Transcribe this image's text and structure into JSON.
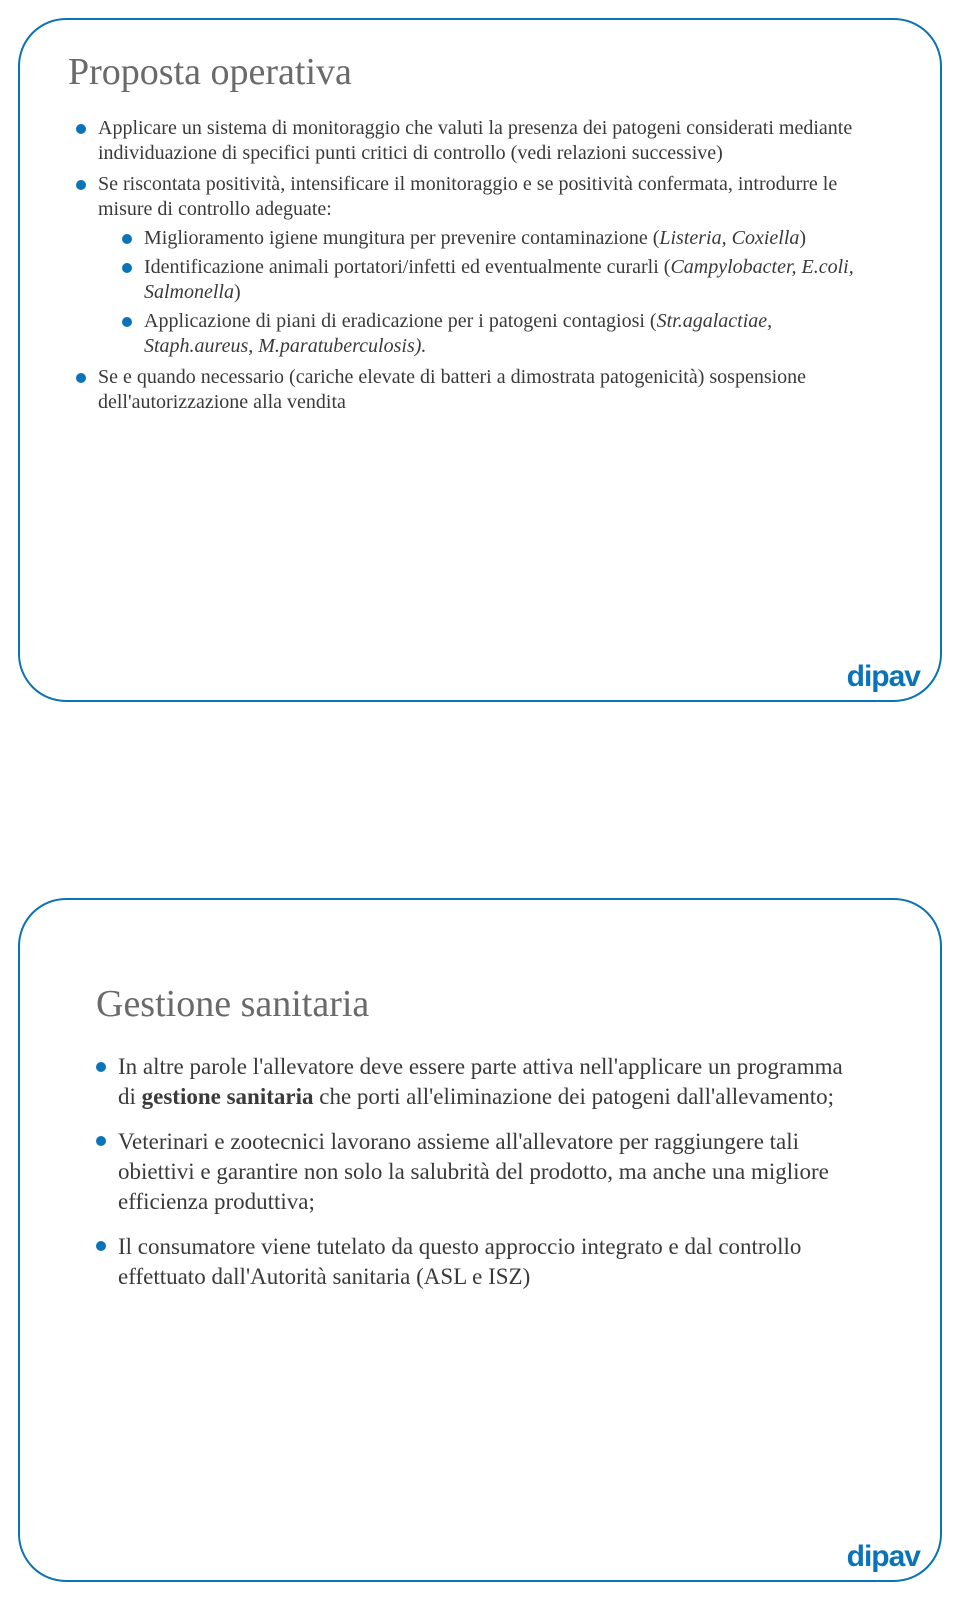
{
  "colors": {
    "accent": "#0b73b7",
    "frame": "#0b73b7",
    "title": "#6a6a6a",
    "body": "#3a3a3a",
    "logo": "#0b73b7"
  },
  "logo_text": "dipav",
  "slide1": {
    "title": "Proposta operativa",
    "b1": "Applicare un sistema di monitoraggio che valuti la presenza dei patogeni considerati mediante individuazione di specifici punti critici di controllo (vedi relazioni successive)",
    "b2": "Se riscontata positività, intensificare il monitoraggio e se positività confermata, introdurre le misure di controllo adeguate:",
    "b2a_pre": "Miglioramento igiene mungitura per prevenire contaminazione (",
    "b2a_ital": "Listeria, Coxiella",
    "b2a_post": ")",
    "b2b_pre": "Identificazione animali portatori/infetti ed eventualmente curarli (",
    "b2b_ital": "Campylobacter, E.coli, Salmonella",
    "b2b_post": ")",
    "b2c_pre": "Applicazione di piani di eradicazione per i patogeni contagiosi (",
    "b2c_ital": "Str.agalactiae, Staph.aureus, M.paratuberculosis).",
    "b3": "Se e quando necessario (cariche elevate di batteri a dimostrata patogenicità) sospensione dell'autorizzazione alla vendita"
  },
  "slide2": {
    "title": "Gestione sanitaria",
    "b1_pre": "In altre parole l'allevatore deve essere parte attiva nell'applicare un programma di ",
    "b1_bold": "gestione sanitaria",
    "b1_post": " che porti all'eliminazione dei patogeni dall'allevamento;",
    "b2": "Veterinari e zootecnici lavorano assieme all'allevatore per raggiungere tali obiettivi e garantire non solo la salubrità del prodotto, ma anche una migliore efficienza produttiva;",
    "b3": "Il consumatore viene tutelato da questo approccio integrato e dal controllo effettuato dall'Autorità sanitaria (ASL e ISZ)"
  }
}
